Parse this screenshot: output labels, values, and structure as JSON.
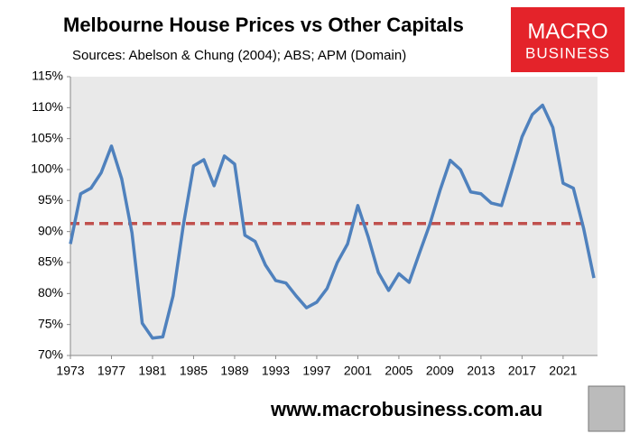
{
  "chart_data": {
    "type": "line",
    "title": "Melbourne House Prices vs Other Capitals",
    "subtitle": "Sources: Abelson & Chung (2004); ABS; APM (Domain)",
    "website": "www.macrobusiness.com.au",
    "logo": {
      "line1": "MACRO",
      "line2": "BUSINESS"
    },
    "x": [
      1973,
      1974,
      1975,
      1976,
      1977,
      1978,
      1979,
      1980,
      1981,
      1982,
      1983,
      1984,
      1985,
      1986,
      1987,
      1988,
      1989,
      1990,
      1991,
      1992,
      1993,
      1994,
      1995,
      1996,
      1997,
      1998,
      1999,
      2000,
      2001,
      2002,
      2003,
      2004,
      2005,
      2006,
      2007,
      2008,
      2009,
      2010,
      2011,
      2012,
      2013,
      2014,
      2015,
      2016,
      2017,
      2018,
      2019,
      2020,
      2021,
      2022,
      2023,
      2024
    ],
    "series": [
      {
        "color": "#4f81bd",
        "values": [
          88,
          96.1,
          97,
          99.5,
          103.8,
          98.5,
          89.8,
          75.2,
          72.8,
          73,
          79.6,
          91,
          100.6,
          101.6,
          97.4,
          102.2,
          100.9,
          89.4,
          88.4,
          84.6,
          82.1,
          81.7,
          79.6,
          77.7,
          78.6,
          80.8,
          85,
          88,
          94.2,
          89.2,
          83.4,
          80.5,
          83.2,
          81.8,
          86.5,
          91.1,
          96.6,
          101.5,
          100,
          96.4,
          96.1,
          94.6,
          94.2,
          99.7,
          105.3,
          108.9,
          110.4,
          106.8,
          97.8,
          97,
          90.5,
          82.5
        ]
      }
    ],
    "reference_line": {
      "value": 91.3,
      "x_range": [
        1973,
        2023
      ],
      "color": "#c0504d"
    },
    "xlim": [
      1973,
      2024
    ],
    "xticks": [
      1973,
      1977,
      1981,
      1985,
      1989,
      1993,
      1997,
      2001,
      2005,
      2009,
      2013,
      2017,
      2021
    ],
    "ylim": [
      70,
      115
    ],
    "yticks": [
      {
        "value": 70,
        "label": "70%"
      },
      {
        "value": 75,
        "label": "75%"
      },
      {
        "value": 80,
        "label": "80%"
      },
      {
        "value": 85,
        "label": "85%"
      },
      {
        "value": 90,
        "label": "90%"
      },
      {
        "value": 95,
        "label": "95%"
      },
      {
        "value": 100,
        "label": "100%"
      },
      {
        "value": 105,
        "label": "105%"
      },
      {
        "value": 110,
        "label": "110%"
      },
      {
        "value": 115,
        "label": "115%"
      }
    ],
    "background": "#e9e9e9"
  }
}
